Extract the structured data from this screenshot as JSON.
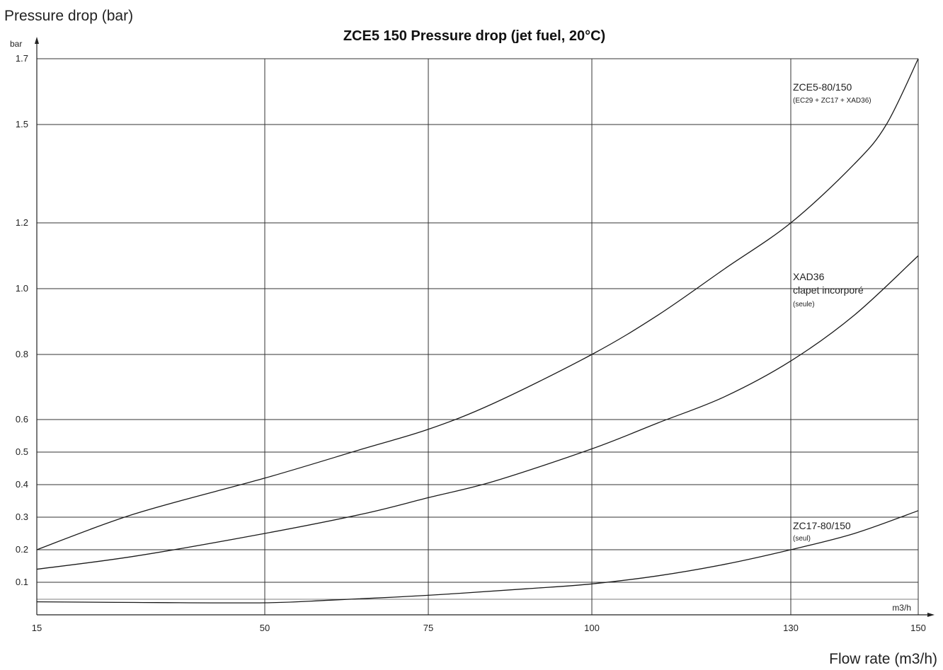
{
  "chart_data": {
    "type": "line",
    "outer_ylabel": "Pressure drop (bar)",
    "outer_xlabel": "Flow rate (m3/h)",
    "title": "ZCE5 150  Pressure drop (jet fuel, 20°C)",
    "y_unit": "bar",
    "x_unit": "m3/h",
    "x_ticks": [
      "15",
      "50",
      "75",
      "100",
      "130",
      "150"
    ],
    "y_ticks": [
      "0.1",
      "0.2",
      "0.3",
      "0.4",
      "0.5",
      "0.6",
      "0.8",
      "1.0",
      "1.2",
      "1.5",
      "1.7"
    ],
    "grid": true,
    "series": [
      {
        "name": "ZCE5-80/150",
        "sublabel": "(EC29 + ZC17 + XAD36)",
        "x": [
          15,
          30,
          50,
          65,
          75,
          85,
          100,
          110,
          120,
          130,
          140,
          145,
          150
        ],
        "y": [
          0.2,
          0.31,
          0.42,
          0.51,
          0.57,
          0.65,
          0.8,
          0.92,
          1.06,
          1.2,
          1.38,
          1.5,
          1.7
        ]
      },
      {
        "name": "XAD36",
        "name_line2": "clapet incorporé",
        "sublabel": "(seule)",
        "x": [
          15,
          30,
          50,
          65,
          75,
          85,
          100,
          110,
          120,
          130,
          140,
          150
        ],
        "y": [
          0.14,
          0.18,
          0.25,
          0.31,
          0.36,
          0.41,
          0.51,
          0.59,
          0.67,
          0.78,
          0.92,
          1.1
        ]
      },
      {
        "name": "ZC17-80/150",
        "sublabel": "(seul)",
        "x": [
          15,
          30,
          50,
          60,
          75,
          90,
          100,
          110,
          120,
          130,
          140,
          150
        ],
        "y": [
          0.04,
          0.038,
          0.037,
          0.045,
          0.06,
          0.08,
          0.095,
          0.12,
          0.155,
          0.2,
          0.25,
          0.32
        ]
      }
    ]
  }
}
